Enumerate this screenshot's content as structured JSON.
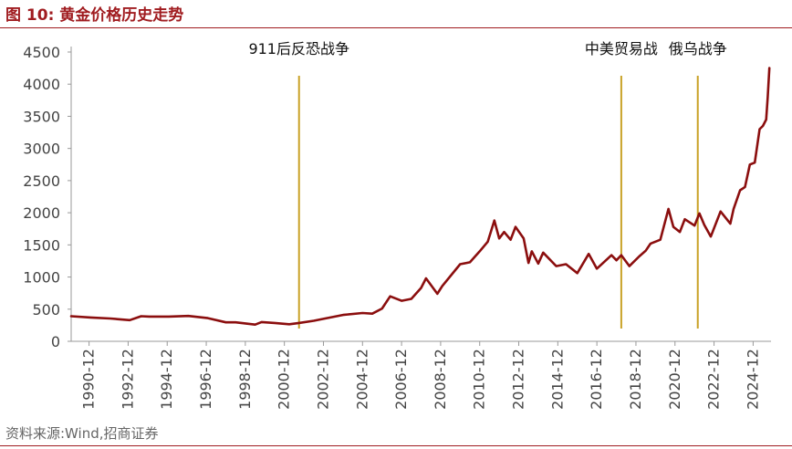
{
  "figure": {
    "title": "图 10:  黄金价格历史走势",
    "source": "资料来源:Wind,招商证券"
  },
  "colors": {
    "series": "#8b0e0e",
    "event_line": "#c9a227",
    "title_red": "#a01c20",
    "axis": "#999999"
  },
  "chart_data": {
    "type": "line",
    "title": "",
    "xlabel": "",
    "ylabel": "",
    "ylim": [
      0,
      4500
    ],
    "y_ticks": [
      0,
      500,
      1000,
      1500,
      2000,
      2500,
      3000,
      3500,
      4000,
      4500
    ],
    "x_tick_labels": [
      "1990-12",
      "1992-12",
      "1994-12",
      "1996-12",
      "1998-12",
      "2000-12",
      "2002-12",
      "2004-12",
      "2006-12",
      "2008-12",
      "2010-12",
      "2012-12",
      "2014-12",
      "2016-12",
      "2018-12",
      "2020-12",
      "2022-12",
      "2024-12"
    ],
    "x_range": [
      "1990-01",
      "2025-10"
    ],
    "series": [
      {
        "points": [
          [
            "1990-01",
            390
          ],
          [
            "1991-01",
            370
          ],
          [
            "1992-01",
            355
          ],
          [
            "1993-01",
            330
          ],
          [
            "1993-08",
            390
          ],
          [
            "1994-01",
            385
          ],
          [
            "1995-01",
            385
          ],
          [
            "1996-01",
            395
          ],
          [
            "1997-01",
            360
          ],
          [
            "1997-12",
            295
          ],
          [
            "1998-06",
            295
          ],
          [
            "1999-06",
            260
          ],
          [
            "1999-10",
            300
          ],
          [
            "2000-06",
            285
          ],
          [
            "2001-03",
            265
          ],
          [
            "2001-09",
            285
          ],
          [
            "2002-06",
            320
          ],
          [
            "2003-01",
            355
          ],
          [
            "2003-12",
            410
          ],
          [
            "2004-12",
            440
          ],
          [
            "2005-06",
            430
          ],
          [
            "2005-12",
            510
          ],
          [
            "2006-05",
            700
          ],
          [
            "2006-12",
            630
          ],
          [
            "2007-06",
            660
          ],
          [
            "2007-12",
            830
          ],
          [
            "2008-03",
            980
          ],
          [
            "2008-10",
            740
          ],
          [
            "2009-01",
            860
          ],
          [
            "2009-12",
            1200
          ],
          [
            "2010-06",
            1230
          ],
          [
            "2010-12",
            1400
          ],
          [
            "2011-05",
            1550
          ],
          [
            "2011-09",
            1880
          ],
          [
            "2011-12",
            1600
          ],
          [
            "2012-03",
            1700
          ],
          [
            "2012-07",
            1580
          ],
          [
            "2012-10",
            1780
          ],
          [
            "2013-03",
            1600
          ],
          [
            "2013-06",
            1220
          ],
          [
            "2013-08",
            1400
          ],
          [
            "2013-12",
            1210
          ],
          [
            "2014-03",
            1380
          ],
          [
            "2014-11",
            1170
          ],
          [
            "2015-05",
            1200
          ],
          [
            "2015-12",
            1060
          ],
          [
            "2016-07",
            1360
          ],
          [
            "2016-12",
            1130
          ],
          [
            "2017-09",
            1340
          ],
          [
            "2017-12",
            1260
          ],
          [
            "2018-03",
            1340
          ],
          [
            "2018-08",
            1170
          ],
          [
            "2019-02",
            1320
          ],
          [
            "2019-06",
            1410
          ],
          [
            "2019-09",
            1520
          ],
          [
            "2020-03",
            1580
          ],
          [
            "2020-08",
            2060
          ],
          [
            "2020-11",
            1780
          ],
          [
            "2021-03",
            1700
          ],
          [
            "2021-06",
            1900
          ],
          [
            "2021-12",
            1800
          ],
          [
            "2022-03",
            1990
          ],
          [
            "2022-06",
            1810
          ],
          [
            "2022-10",
            1630
          ],
          [
            "2023-04",
            2020
          ],
          [
            "2023-10",
            1830
          ],
          [
            "2023-12",
            2060
          ],
          [
            "2024-04",
            2350
          ],
          [
            "2024-07",
            2400
          ],
          [
            "2024-10",
            2750
          ],
          [
            "2025-01",
            2780
          ],
          [
            "2025-04",
            3300
          ],
          [
            "2025-06",
            3350
          ],
          [
            "2025-08",
            3450
          ],
          [
            "2025-09",
            3800
          ],
          [
            "2025-10",
            4250
          ]
        ]
      }
    ],
    "annotations": [
      {
        "label": "911后反恐战争",
        "x": "2001-09"
      },
      {
        "label": "中美贸易战",
        "x": "2018-03"
      },
      {
        "label": "俄乌战争",
        "x": "2022-02"
      }
    ],
    "grid": false,
    "legend": "none"
  }
}
